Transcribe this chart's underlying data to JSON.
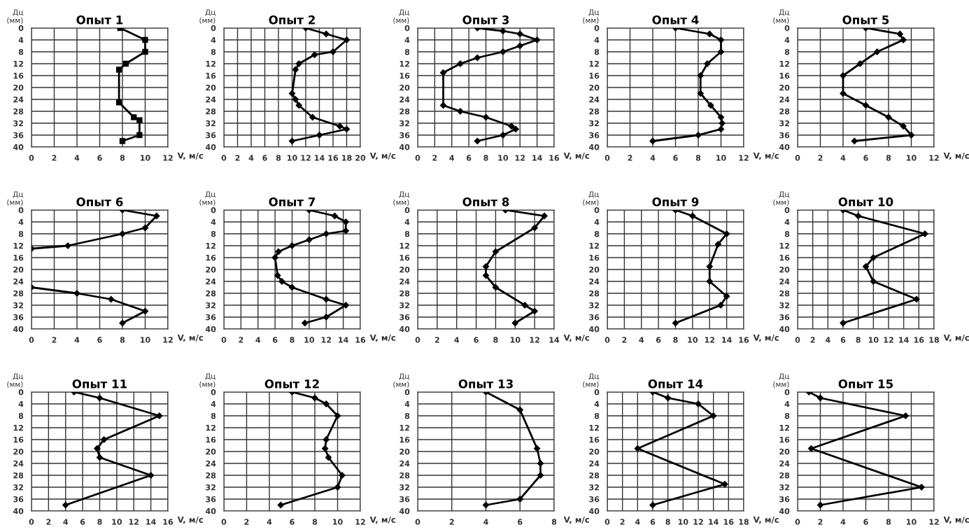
{
  "chart_data": [
    {
      "type": "line",
      "title": "Опыт 1",
      "xlabel": "V, м/с",
      "ylabel": "Дц\n(мм)",
      "xlim": [
        0,
        12
      ],
      "xticks": [
        0,
        2,
        4,
        6,
        8,
        10,
        12
      ],
      "ylim": [
        40,
        0
      ],
      "yticks": [
        0,
        4,
        8,
        12,
        16,
        20,
        24,
        28,
        32,
        36,
        40
      ],
      "grid": true,
      "marker": "square",
      "series": [
        {
          "color": "#000000",
          "x": [
            7.8,
            10,
            10,
            8.3,
            7.7,
            7.7,
            9,
            9.5,
            9.5,
            8
          ],
          "values": [
            0,
            4,
            8,
            12,
            14,
            25,
            30,
            31,
            36,
            38
          ]
        }
      ]
    },
    {
      "type": "line",
      "title": "Опыт 2",
      "xlabel": "V, м/с",
      "ylabel": "Дц\n(мм)",
      "xlim": [
        0,
        20
      ],
      "xticks": [
        0,
        2,
        4,
        6,
        8,
        10,
        12,
        14,
        16,
        18,
        20
      ],
      "ylim": [
        40,
        0
      ],
      "yticks": [
        0,
        4,
        8,
        12,
        16,
        20,
        24,
        28,
        32,
        36,
        40
      ],
      "grid": true,
      "marker": "diamond",
      "series": [
        {
          "color": "#000000",
          "x": [
            12,
            15,
            18,
            16,
            13.3,
            11,
            10.5,
            10,
            10.5,
            11,
            13,
            17,
            18,
            14,
            10
          ],
          "values": [
            0,
            2,
            4,
            8,
            9,
            12,
            14,
            22,
            24,
            26,
            30,
            33,
            34,
            36,
            38
          ]
        }
      ]
    },
    {
      "type": "line",
      "title": "Опыт 3",
      "xlabel": "V, м/с",
      "ylabel": "Дц\n(мм)",
      "xlim": [
        0,
        16
      ],
      "xticks": [
        0,
        2,
        4,
        6,
        8,
        10,
        12,
        14,
        16
      ],
      "ylim": [
        40,
        0
      ],
      "yticks": [
        0,
        4,
        8,
        12,
        16,
        20,
        24,
        28,
        32,
        36,
        40
      ],
      "grid": true,
      "marker": "diamond",
      "series": [
        {
          "color": "#000000",
          "x": [
            7,
            10,
            12,
            14,
            12,
            10,
            7,
            5,
            3,
            3,
            5,
            8,
            11,
            11.5,
            10,
            7
          ],
          "values": [
            0,
            1,
            2,
            4,
            6,
            8,
            10,
            12,
            15,
            26,
            28,
            30,
            33,
            34,
            36,
            38
          ]
        }
      ]
    },
    {
      "type": "line",
      "title": "Опыт 4",
      "xlabel": "V, м/с",
      "ylabel": "Дц\n(мм)",
      "xlim": [
        0,
        12
      ],
      "xticks": [
        0,
        2,
        4,
        6,
        8,
        10,
        12
      ],
      "ylim": [
        40,
        0
      ],
      "yticks": [
        0,
        4,
        8,
        12,
        16,
        20,
        24,
        28,
        32,
        36,
        40
      ],
      "grid": true,
      "marker": "diamond",
      "series": [
        {
          "color": "#000000",
          "x": [
            6,
            9,
            10,
            10,
            8.8,
            8.2,
            8.2,
            9.1,
            10,
            10.1,
            10,
            8,
            4
          ],
          "values": [
            0,
            2,
            4,
            8,
            12,
            16,
            22,
            26,
            30,
            32,
            34,
            36,
            38
          ]
        }
      ]
    },
    {
      "type": "line",
      "title": "Опыт 5",
      "xlabel": "V, м/с",
      "ylabel": "Дц\n(мм)",
      "xlim": [
        0,
        12
      ],
      "xticks": [
        0,
        2,
        4,
        6,
        8,
        10,
        12
      ],
      "ylim": [
        40,
        0
      ],
      "yticks": [
        0,
        4,
        8,
        12,
        16,
        20,
        24,
        28,
        32,
        36,
        40
      ],
      "grid": true,
      "marker": "diamond",
      "series": [
        {
          "color": "#000000",
          "x": [
            6,
            9,
            9.3,
            7,
            5.5,
            4,
            4,
            6,
            8,
            9.3,
            10,
            5
          ],
          "values": [
            0,
            2,
            4,
            8,
            12,
            16,
            22,
            26,
            30,
            33,
            36,
            38
          ]
        }
      ]
    },
    {
      "type": "line",
      "title": "Опыт 6",
      "xlabel": "V, м/с",
      "ylabel": "Дц\n(мм)",
      "xlim": [
        0,
        12
      ],
      "xticks": [
        0,
        2,
        4,
        6,
        8,
        10,
        12
      ],
      "ylim": [
        40,
        0
      ],
      "yticks": [
        0,
        4,
        8,
        12,
        16,
        20,
        24,
        28,
        32,
        36,
        40
      ],
      "grid": true,
      "marker": "diamond",
      "series": [
        {
          "color": "#000000",
          "x": [
            8,
            11,
            10,
            8,
            3.2,
            0,
            null,
            0,
            4,
            7,
            10,
            8
          ],
          "values": [
            0,
            2,
            6,
            8,
            12,
            13,
            null,
            26,
            28,
            30,
            34,
            38
          ]
        }
      ]
    },
    {
      "type": "line",
      "title": "Опыт 7",
      "xlabel": "V, м/с",
      "ylabel": "Дц\n(мм)",
      "xlim": [
        0,
        16
      ],
      "xticks": [
        0,
        2,
        4,
        6,
        8,
        10,
        12,
        14,
        16
      ],
      "ylim": [
        40,
        0
      ],
      "yticks": [
        0,
        4,
        8,
        12,
        16,
        20,
        24,
        28,
        32,
        36,
        40
      ],
      "grid": true,
      "marker": "diamond",
      "series": [
        {
          "color": "#000000",
          "x": [
            10,
            13,
            14.3,
            14.3,
            12,
            10,
            8,
            6.4,
            6,
            6.3,
            6.8,
            8,
            12,
            14.3,
            12,
            9.5
          ],
          "values": [
            0,
            2,
            4,
            7,
            8,
            10,
            12,
            14,
            16,
            22,
            24,
            26,
            30,
            32,
            36,
            38
          ]
        }
      ]
    },
    {
      "type": "line",
      "title": "Опыт 8",
      "xlabel": "V, м/с",
      "ylabel": "Дц\n(мм)",
      "xlim": [
        0,
        14
      ],
      "xticks": [
        0,
        2,
        4,
        6,
        8,
        10,
        12,
        14
      ],
      "ylim": [
        40,
        0
      ],
      "yticks": [
        0,
        4,
        8,
        12,
        16,
        20,
        24,
        28,
        32,
        36,
        40
      ],
      "grid": true,
      "marker": "diamond",
      "series": [
        {
          "color": "#000000",
          "x": [
            9,
            13,
            12,
            8,
            7,
            7,
            8,
            11,
            12,
            10
          ],
          "values": [
            0,
            2,
            6,
            14,
            19,
            22,
            26,
            32,
            34,
            38
          ]
        }
      ]
    },
    {
      "type": "line",
      "title": "Опыт 9",
      "xlabel": "V, м/с",
      "ylabel": "Дц\n(мм)",
      "xlim": [
        0,
        16
      ],
      "xticks": [
        0,
        2,
        4,
        6,
        8,
        10,
        12,
        14,
        16
      ],
      "ylim": [
        40,
        0
      ],
      "yticks": [
        0,
        4,
        8,
        12,
        16,
        20,
        24,
        28,
        32,
        36,
        40
      ],
      "grid": true,
      "marker": "diamond",
      "series": [
        {
          "color": "#000000",
          "x": [
            8,
            10,
            14,
            13,
            12,
            12,
            14,
            13.3,
            8
          ],
          "values": [
            0,
            2,
            8,
            11.5,
            19,
            24,
            29,
            32,
            38
          ]
        }
      ]
    },
    {
      "type": "line",
      "title": "Опыт 10",
      "xlabel": "V, м/с",
      "ylabel": "Дц\n(мм)",
      "xlim": [
        0,
        18
      ],
      "xticks": [
        0,
        2,
        4,
        6,
        8,
        10,
        12,
        14,
        16,
        18
      ],
      "ylim": [
        40,
        0
      ],
      "yticks": [
        0,
        4,
        8,
        12,
        16,
        20,
        24,
        28,
        32,
        36,
        40
      ],
      "grid": true,
      "marker": "diamond",
      "series": [
        {
          "color": "#000000",
          "x": [
            6,
            8,
            16.8,
            10,
            9,
            10,
            15.7,
            6
          ],
          "values": [
            0,
            2,
            8,
            16,
            19,
            24,
            30,
            38
          ]
        }
      ]
    },
    {
      "type": "line",
      "title": "Опыт 11",
      "xlabel": "V, м/с",
      "ylabel": "Дц\n(мм)",
      "xlim": [
        0,
        16
      ],
      "xticks": [
        0,
        2,
        4,
        6,
        8,
        10,
        12,
        14,
        16
      ],
      "ylim": [
        40,
        0
      ],
      "yticks": [
        0,
        4,
        8,
        12,
        16,
        20,
        24,
        28,
        32,
        36,
        40
      ],
      "grid": true,
      "marker": "diamond",
      "series": [
        {
          "color": "#000000",
          "x": [
            5,
            8,
            15,
            8.5,
            7.7,
            8,
            14,
            4
          ],
          "values": [
            0,
            2,
            8,
            16,
            19,
            22,
            28,
            38
          ]
        }
      ]
    },
    {
      "type": "line",
      "title": "Опыт 12",
      "xlabel": "V, м/с",
      "ylabel": "Дц\n(мм)",
      "xlim": [
        0,
        12
      ],
      "xticks": [
        0,
        2,
        4,
        6,
        8,
        10,
        12
      ],
      "ylim": [
        40,
        0
      ],
      "yticks": [
        0,
        4,
        8,
        12,
        16,
        20,
        24,
        28,
        32,
        36,
        40
      ],
      "grid": true,
      "marker": "diamond",
      "series": [
        {
          "color": "#000000",
          "x": [
            6,
            8,
            9,
            10,
            9,
            8.9,
            9.2,
            10.4,
            10,
            5
          ],
          "values": [
            0,
            2,
            4,
            8,
            16,
            19,
            22,
            28,
            32,
            38
          ]
        }
      ]
    },
    {
      "type": "line",
      "title": "Опыт 13",
      "xlabel": "V, м/с",
      "ylabel": "Дц\n(мм)",
      "xlim": [
        0,
        8
      ],
      "xticks": [
        0,
        2,
        4,
        6,
        8
      ],
      "ylim": [
        40,
        0
      ],
      "yticks": [
        0,
        4,
        8,
        12,
        16,
        20,
        24,
        28,
        32,
        36,
        40
      ],
      "grid": true,
      "marker": "diamond",
      "series": [
        {
          "color": "#000000",
          "x": [
            4,
            6,
            7,
            7.2,
            7.2,
            6,
            4
          ],
          "values": [
            0,
            6,
            19,
            24,
            28,
            36,
            38
          ]
        }
      ]
    },
    {
      "type": "line",
      "title": "Опыт 14",
      "xlabel": "V, м/с",
      "ylabel": "Дц\n(мм)",
      "xlim": [
        0,
        18
      ],
      "xticks": [
        0,
        2,
        4,
        6,
        8,
        10,
        12,
        14,
        16,
        18
      ],
      "ylim": [
        40,
        0
      ],
      "yticks": [
        0,
        4,
        8,
        12,
        16,
        20,
        24,
        28,
        32,
        36,
        40
      ],
      "grid": true,
      "marker": "diamond",
      "series": [
        {
          "color": "#000000",
          "x": [
            6,
            8,
            12,
            14,
            4,
            15.5,
            6
          ],
          "values": [
            0,
            2,
            4,
            8,
            19,
            31,
            38
          ]
        }
      ]
    },
    {
      "type": "line",
      "title": "Опыт 15",
      "xlabel": "V, м/с",
      "ylabel": "Дц\n(мм)",
      "xlim": [
        0,
        12
      ],
      "xticks": [
        0,
        2,
        4,
        6,
        8,
        10,
        12
      ],
      "ylim": [
        40,
        0
      ],
      "yticks": [
        0,
        4,
        8,
        12,
        16,
        20,
        24,
        28,
        32,
        36,
        40
      ],
      "grid": true,
      "marker": "diamond",
      "series": [
        {
          "color": "#000000",
          "x": [
            1,
            2,
            9.5,
            1.2,
            10.9,
            2
          ],
          "values": [
            0,
            2,
            8,
            19,
            32,
            38
          ]
        }
      ]
    }
  ]
}
